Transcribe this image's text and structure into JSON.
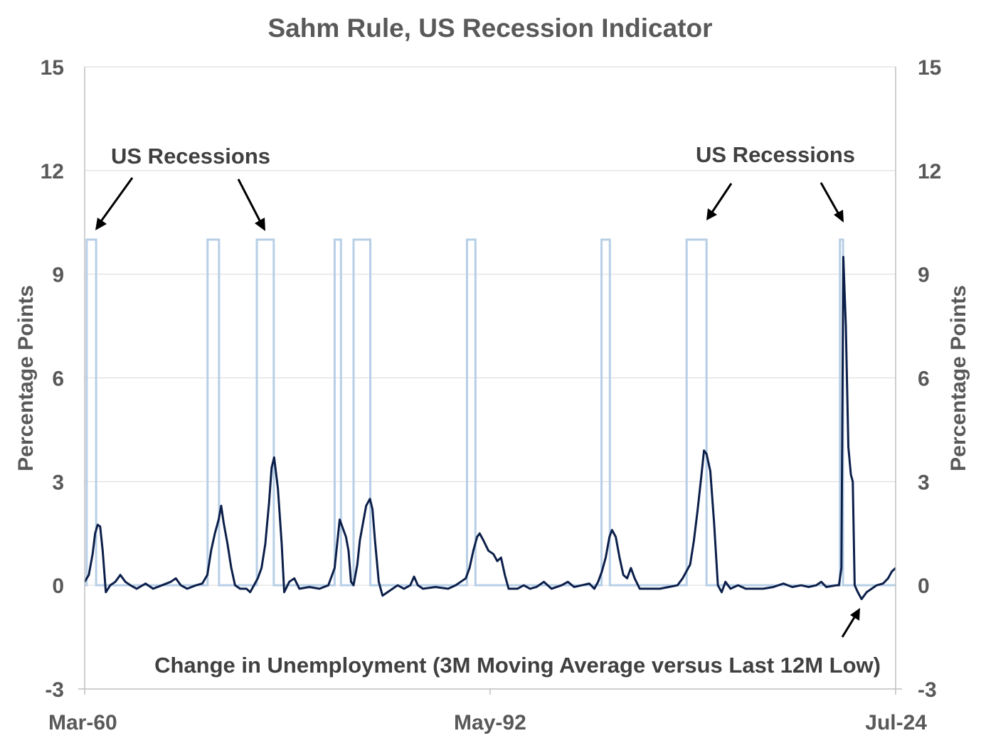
{
  "chart_data": {
    "type": "line",
    "title": "Sahm Rule, US Recession Indicator",
    "ylabel_left": "Percentage   Points",
    "ylabel_right": "Percentage  Points",
    "ylim": [
      -3,
      15
    ],
    "yticks": [
      -3,
      0,
      3,
      6,
      9,
      12,
      15
    ],
    "ytick_labels": [
      "-3",
      "0",
      "3",
      "6",
      "9",
      "12",
      "15"
    ],
    "x_tick_labels": [
      "Mar-60",
      "May-92",
      "Jul-24"
    ],
    "x_tick_values": [
      1960.17,
      1992.33,
      2024.5
    ],
    "xlim": [
      1960.17,
      2024.5
    ],
    "grid": true,
    "recession_level": 10,
    "recessions": [
      [
        1960.33,
        1961.08
      ],
      [
        1969.92,
        1970.83
      ],
      [
        1973.83,
        1975.17
      ],
      [
        1980.0,
        1980.5
      ],
      [
        1981.5,
        1982.83
      ],
      [
        1990.5,
        1991.17
      ],
      [
        2001.17,
        2001.83
      ],
      [
        2007.92,
        2009.5
      ],
      [
        2020.08,
        2020.33
      ]
    ],
    "series": [
      {
        "name": "Change in Unemployment (3M Moving Average versus Last 12M Low)",
        "color": "#0c1f4a",
        "points": [
          [
            1960.17,
            0.1
          ],
          [
            1960.5,
            0.3
          ],
          [
            1960.8,
            0.9
          ],
          [
            1961.0,
            1.5
          ],
          [
            1961.2,
            1.75
          ],
          [
            1961.4,
            1.7
          ],
          [
            1961.6,
            1.0
          ],
          [
            1961.85,
            -0.2
          ],
          [
            1962.2,
            0.0
          ],
          [
            1962.6,
            0.1
          ],
          [
            1963.0,
            0.3
          ],
          [
            1963.4,
            0.1
          ],
          [
            1963.8,
            0.0
          ],
          [
            1964.3,
            -0.1
          ],
          [
            1965.0,
            0.05
          ],
          [
            1965.6,
            -0.1
          ],
          [
            1966.3,
            0.0
          ],
          [
            1967.0,
            0.1
          ],
          [
            1967.4,
            0.2
          ],
          [
            1967.8,
            0.0
          ],
          [
            1968.3,
            -0.1
          ],
          [
            1969.0,
            0.0
          ],
          [
            1969.5,
            0.05
          ],
          [
            1969.9,
            0.3
          ],
          [
            1970.2,
            1.0
          ],
          [
            1970.5,
            1.5
          ],
          [
            1970.8,
            1.9
          ],
          [
            1971.0,
            2.3
          ],
          [
            1971.2,
            1.8
          ],
          [
            1971.5,
            1.2
          ],
          [
            1971.8,
            0.5
          ],
          [
            1972.1,
            0.0
          ],
          [
            1972.5,
            -0.1
          ],
          [
            1973.0,
            -0.1
          ],
          [
            1973.3,
            -0.2
          ],
          [
            1973.6,
            0.0
          ],
          [
            1973.9,
            0.2
          ],
          [
            1974.2,
            0.5
          ],
          [
            1974.5,
            1.2
          ],
          [
            1974.8,
            2.4
          ],
          [
            1975.0,
            3.4
          ],
          [
            1975.2,
            3.7
          ],
          [
            1975.5,
            2.8
          ],
          [
            1975.8,
            1.2
          ],
          [
            1976.0,
            -0.2
          ],
          [
            1976.4,
            0.1
          ],
          [
            1976.8,
            0.2
          ],
          [
            1977.2,
            -0.1
          ],
          [
            1978.0,
            -0.05
          ],
          [
            1978.8,
            -0.1
          ],
          [
            1979.5,
            0.0
          ],
          [
            1979.8,
            0.3
          ],
          [
            1980.0,
            0.5
          ],
          [
            1980.2,
            1.2
          ],
          [
            1980.4,
            1.9
          ],
          [
            1980.6,
            1.7
          ],
          [
            1980.9,
            1.4
          ],
          [
            1981.1,
            1.0
          ],
          [
            1981.3,
            0.1
          ],
          [
            1981.5,
            0.0
          ],
          [
            1981.8,
            0.6
          ],
          [
            1982.0,
            1.3
          ],
          [
            1982.3,
            1.9
          ],
          [
            1982.5,
            2.3
          ],
          [
            1982.8,
            2.5
          ],
          [
            1983.0,
            2.2
          ],
          [
            1983.2,
            1.3
          ],
          [
            1983.5,
            0.1
          ],
          [
            1983.8,
            -0.3
          ],
          [
            1984.2,
            -0.2
          ],
          [
            1984.6,
            -0.1
          ],
          [
            1985.0,
            0.0
          ],
          [
            1985.5,
            -0.1
          ],
          [
            1986.0,
            0.0
          ],
          [
            1986.3,
            0.25
          ],
          [
            1986.6,
            0.0
          ],
          [
            1987.0,
            -0.1
          ],
          [
            1988.0,
            -0.05
          ],
          [
            1989.0,
            -0.1
          ],
          [
            1989.6,
            0.0
          ],
          [
            1990.0,
            0.1
          ],
          [
            1990.4,
            0.2
          ],
          [
            1990.7,
            0.5
          ],
          [
            1991.0,
            1.0
          ],
          [
            1991.3,
            1.4
          ],
          [
            1991.5,
            1.5
          ],
          [
            1991.8,
            1.3
          ],
          [
            1992.2,
            1.0
          ],
          [
            1992.6,
            0.9
          ],
          [
            1992.9,
            0.7
          ],
          [
            1993.2,
            0.8
          ],
          [
            1993.5,
            0.3
          ],
          [
            1993.8,
            -0.1
          ],
          [
            1994.5,
            -0.1
          ],
          [
            1995.0,
            0.0
          ],
          [
            1995.5,
            -0.1
          ],
          [
            1996.0,
            -0.05
          ],
          [
            1996.6,
            0.1
          ],
          [
            1997.2,
            -0.1
          ],
          [
            1998.0,
            0.0
          ],
          [
            1998.5,
            0.1
          ],
          [
            1999.0,
            -0.05
          ],
          [
            1999.6,
            0.0
          ],
          [
            2000.2,
            0.05
          ],
          [
            2000.6,
            -0.1
          ],
          [
            2000.9,
            0.1
          ],
          [
            2001.2,
            0.4
          ],
          [
            2001.5,
            0.8
          ],
          [
            2001.8,
            1.4
          ],
          [
            2002.0,
            1.6
          ],
          [
            2002.3,
            1.4
          ],
          [
            2002.6,
            0.8
          ],
          [
            2002.9,
            0.3
          ],
          [
            2003.2,
            0.2
          ],
          [
            2003.5,
            0.5
          ],
          [
            2003.8,
            0.2
          ],
          [
            2004.2,
            -0.1
          ],
          [
            2005.0,
            -0.1
          ],
          [
            2005.8,
            -0.1
          ],
          [
            2006.5,
            -0.05
          ],
          [
            2007.2,
            0.0
          ],
          [
            2007.6,
            0.2
          ],
          [
            2007.9,
            0.4
          ],
          [
            2008.2,
            0.6
          ],
          [
            2008.5,
            1.3
          ],
          [
            2008.8,
            2.2
          ],
          [
            2009.1,
            3.2
          ],
          [
            2009.3,
            3.9
          ],
          [
            2009.5,
            3.8
          ],
          [
            2009.8,
            3.3
          ],
          [
            2010.1,
            1.8
          ],
          [
            2010.4,
            0.0
          ],
          [
            2010.7,
            -0.2
          ],
          [
            2011.0,
            0.1
          ],
          [
            2011.4,
            -0.1
          ],
          [
            2012.0,
            0.0
          ],
          [
            2012.6,
            -0.1
          ],
          [
            2013.3,
            -0.1
          ],
          [
            2014.0,
            -0.1
          ],
          [
            2014.8,
            -0.05
          ],
          [
            2015.6,
            0.05
          ],
          [
            2016.3,
            -0.05
          ],
          [
            2017.0,
            0.0
          ],
          [
            2017.6,
            -0.05
          ],
          [
            2018.2,
            0.0
          ],
          [
            2018.6,
            0.1
          ],
          [
            2019.0,
            -0.05
          ],
          [
            2019.8,
            0.0
          ],
          [
            2020.0,
            0.0
          ],
          [
            2020.2,
            0.5
          ],
          [
            2020.35,
            9.5
          ],
          [
            2020.55,
            7.5
          ],
          [
            2020.75,
            4.0
          ],
          [
            2020.95,
            3.2
          ],
          [
            2021.1,
            3.0
          ],
          [
            2021.25,
            0.0
          ],
          [
            2021.5,
            -0.2
          ],
          [
            2021.8,
            -0.4
          ],
          [
            2022.2,
            -0.2
          ],
          [
            2022.6,
            -0.1
          ],
          [
            2023.0,
            0.0
          ],
          [
            2023.5,
            0.05
          ],
          [
            2023.9,
            0.2
          ],
          [
            2024.2,
            0.4
          ],
          [
            2024.5,
            0.5
          ]
        ]
      }
    ],
    "annotations": [
      {
        "text": "US Recessions"
      },
      {
        "text": "US Recessions"
      },
      {
        "text": "Change in Unemployment (3M Moving Average versus Last 12M Low)"
      }
    ],
    "colors": {
      "recession": "#b7cfe6",
      "series": "#0c1f4a",
      "text": "#595959",
      "grid": "#d9d9d9"
    }
  }
}
